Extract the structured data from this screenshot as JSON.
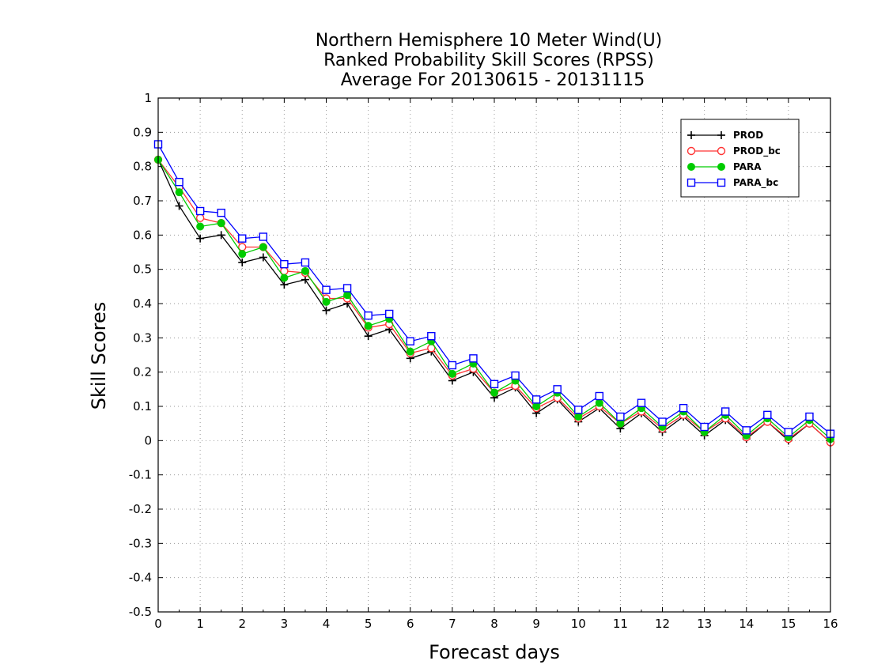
{
  "chart_data": {
    "type": "line",
    "title": [
      "Northern Hemisphere 10 Meter Wind(U)",
      "Ranked Probability Skill Scores (RPSS)",
      "Average For 20130615 - 20131115"
    ],
    "xlabel": "Forecast days",
    "ylabel": "Skill Scores",
    "xlim": [
      0,
      16
    ],
    "ylim": [
      -0.5,
      1
    ],
    "xticks": [
      "0",
      "1",
      "2",
      "3",
      "4",
      "5",
      "6",
      "7",
      "8",
      "9",
      "10",
      "11",
      "12",
      "13",
      "14",
      "15",
      "16"
    ],
    "yticks": [
      "-0.5",
      "-0.4",
      "-0.3",
      "-0.2",
      "-0.1",
      "0",
      "0.1",
      "0.2",
      "0.3",
      "0.4",
      "0.5",
      "0.6",
      "0.7",
      "0.8",
      "0.9",
      "1"
    ],
    "grid": true,
    "legend_position": "top-right",
    "x": [
      0,
      0.5,
      1,
      1.5,
      2,
      2.5,
      3,
      3.5,
      4,
      4.5,
      5,
      5.5,
      6,
      6.5,
      7,
      7.5,
      8,
      8.5,
      9,
      9.5,
      10,
      10.5,
      11,
      11.5,
      12,
      12.5,
      13,
      13.5,
      14,
      14.5,
      15,
      15.5,
      16
    ],
    "series": [
      {
        "name": "PROD",
        "color": "#000000",
        "marker": "plus",
        "values": [
          0.82,
          0.685,
          0.59,
          0.6,
          0.52,
          0.535,
          0.455,
          0.47,
          0.38,
          0.4,
          0.305,
          0.325,
          0.24,
          0.26,
          0.175,
          0.2,
          0.125,
          0.155,
          0.08,
          0.12,
          0.055,
          0.095,
          0.035,
          0.08,
          0.025,
          0.07,
          0.015,
          0.06,
          0.005,
          0.055,
          0.0,
          0.05,
          -0.005
        ]
      },
      {
        "name": "PROD_bc",
        "color": "#ff3333",
        "marker": "open-circle",
        "values": [
          0.82,
          0.74,
          0.65,
          0.635,
          0.565,
          0.565,
          0.495,
          0.49,
          0.415,
          0.415,
          0.33,
          0.34,
          0.255,
          0.27,
          0.19,
          0.21,
          0.14,
          0.16,
          0.095,
          0.125,
          0.065,
          0.1,
          0.05,
          0.085,
          0.035,
          0.075,
          0.025,
          0.065,
          0.01,
          0.055,
          0.005,
          0.05,
          -0.005
        ]
      },
      {
        "name": "PARA",
        "color": "#00cc00",
        "marker": "filled-circle",
        "values": [
          0.82,
          0.725,
          0.625,
          0.635,
          0.545,
          0.565,
          0.475,
          0.495,
          0.405,
          0.425,
          0.335,
          0.355,
          0.26,
          0.29,
          0.195,
          0.225,
          0.14,
          0.175,
          0.1,
          0.14,
          0.07,
          0.11,
          0.05,
          0.095,
          0.04,
          0.085,
          0.025,
          0.075,
          0.015,
          0.065,
          0.01,
          0.06,
          0.005
        ]
      },
      {
        "name": "PARA_bc",
        "color": "#0000ff",
        "marker": "open-square",
        "values": [
          0.865,
          0.755,
          0.67,
          0.665,
          0.59,
          0.595,
          0.515,
          0.52,
          0.44,
          0.445,
          0.365,
          0.37,
          0.29,
          0.305,
          0.22,
          0.24,
          0.165,
          0.19,
          0.12,
          0.15,
          0.09,
          0.13,
          0.07,
          0.11,
          0.055,
          0.095,
          0.04,
          0.085,
          0.03,
          0.075,
          0.025,
          0.07,
          0.02
        ]
      }
    ]
  }
}
